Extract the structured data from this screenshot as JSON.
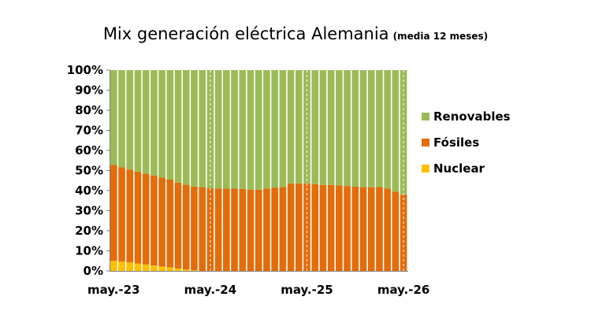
{
  "chart_data": {
    "type": "bar",
    "stacked": true,
    "percent": true,
    "title": "Mix generación eléctrica Alemania",
    "subtitle": "(media 12 meses)",
    "xlabel": "",
    "ylabel": "",
    "ylim": [
      0,
      100
    ],
    "y_ticks": [
      "0%",
      "10%",
      "20%",
      "30%",
      "40%",
      "50%",
      "60%",
      "70%",
      "80%",
      "90%",
      "100%"
    ],
    "x_tick_labels": [
      {
        "label": "may.-23",
        "index": 0
      },
      {
        "label": "may.-24",
        "index": 12
      },
      {
        "label": "may.-25",
        "index": 24
      },
      {
        "label": "may.-26",
        "index": 36
      }
    ],
    "legend_position": "right",
    "categories": [
      "may-23",
      "jun-23",
      "jul-23",
      "ago-23",
      "sep-23",
      "oct-23",
      "nov-23",
      "dic-23",
      "ene-24",
      "feb-24",
      "mar-24",
      "abr-24",
      "may-24",
      "jun-24",
      "jul-24",
      "ago-24",
      "sep-24",
      "oct-24",
      "nov-24",
      "dic-24",
      "ene-25",
      "feb-25",
      "mar-25",
      "abr-25",
      "may-25",
      "jun-25",
      "jul-25",
      "ago-25",
      "sep-25",
      "oct-25",
      "nov-25",
      "dic-25",
      "ene-26",
      "feb-26",
      "mar-26",
      "abr-26",
      "may-26"
    ],
    "series": [
      {
        "name": "Nuclear",
        "color": "#ffc000",
        "values": [
          5.0,
          4.6,
          4.2,
          3.7,
          3.2,
          2.7,
          2.2,
          1.7,
          1.2,
          0.7,
          0.3,
          0,
          0,
          0,
          0,
          0,
          0,
          0,
          0,
          0,
          0,
          0,
          0,
          0,
          0,
          0,
          0,
          0,
          0,
          0,
          0,
          0,
          0,
          0,
          0,
          0,
          0
        ]
      },
      {
        "name": "Fósiles",
        "color": "#e46c0a",
        "values": [
          47.8,
          47.0,
          46.3,
          45.8,
          45.3,
          44.8,
          44.3,
          43.8,
          42.8,
          42.2,
          41.7,
          41.7,
          41.2,
          41.0,
          41.0,
          41.0,
          40.8,
          40.5,
          40.5,
          41.0,
          41.5,
          41.8,
          43.5,
          43.6,
          43.6,
          43.2,
          42.8,
          42.8,
          42.6,
          42.3,
          42.0,
          41.7,
          41.7,
          41.8,
          41.0,
          39.5,
          38.0
        ]
      },
      {
        "name": "Renovables",
        "color": "#9bbb59",
        "values": [
          47.2,
          48.4,
          49.5,
          50.5,
          51.5,
          52.5,
          53.5,
          54.5,
          56.0,
          57.1,
          58.0,
          58.3,
          58.8,
          59.0,
          59.0,
          59.0,
          59.2,
          59.5,
          59.5,
          59.0,
          58.5,
          58.2,
          56.5,
          56.4,
          56.4,
          56.8,
          57.2,
          57.2,
          57.4,
          57.7,
          58.0,
          58.3,
          58.3,
          58.2,
          59.0,
          60.5,
          62.0
        ]
      }
    ],
    "legend_order": [
      "Renovables",
      "Fósiles",
      "Nuclear"
    ]
  }
}
